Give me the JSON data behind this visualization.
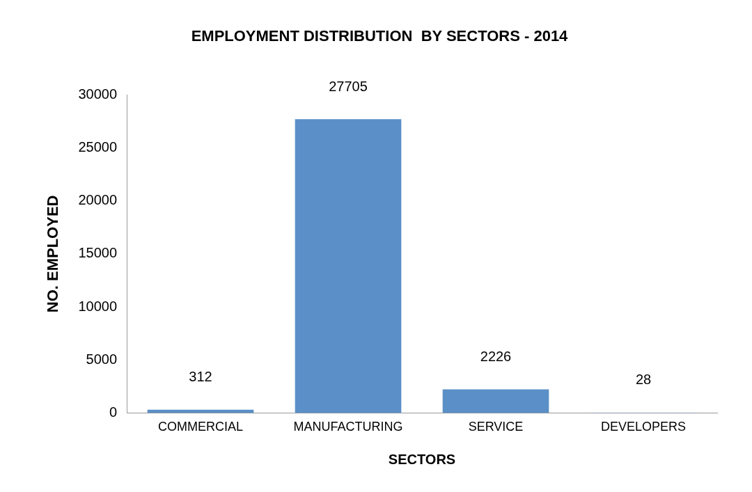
{
  "chart_data": {
    "type": "bar",
    "title": "EMPLOYMENT DISTRIBUTION  BY SECTORS - 2014",
    "xlabel": "SECTORS",
    "ylabel": "NO. EMPLOYED",
    "categories": [
      "COMMERCIAL",
      "MANUFACTURING",
      "SERVICE",
      "DEVELOPERS"
    ],
    "values": [
      312,
      27705,
      2226,
      28
    ],
    "color": "#5b8fc7",
    "ylim": [
      0,
      30000
    ],
    "yticks": [
      0,
      5000,
      10000,
      15000,
      20000,
      25000,
      30000
    ],
    "grid": false,
    "legend": false,
    "data_labels": true
  }
}
